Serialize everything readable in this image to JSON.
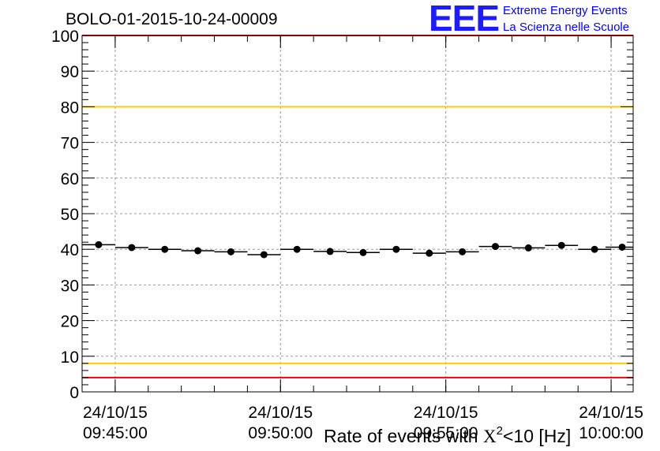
{
  "title": "BOLO-01-2015-10-24-00009",
  "logo": {
    "letters": "EEE",
    "line1": "Extreme Energy Events",
    "line2": "La Scienza nelle Scuole"
  },
  "colors": {
    "logo": "#0000ff",
    "red_line": "#ff0000",
    "yellow_line": "#ffcc00",
    "grid": "#999999"
  },
  "chart_data": {
    "type": "scatter",
    "title": "BOLO-01-2015-10-24-00009",
    "xlabel": {
      "prefix": "Rate of events with ",
      "chi": "X",
      "power": "2",
      "rest": "<10 [Hz]"
    },
    "ylabel": "",
    "ylim": [
      0,
      100
    ],
    "y_ticks": [
      "0",
      "10",
      "20",
      "30",
      "40",
      "50",
      "60",
      "70",
      "80",
      "90",
      "100"
    ],
    "x_tick_labels": [
      {
        "date": "24/10/15",
        "time": "09:45:00"
      },
      {
        "date": "24/10/15",
        "time": "09:50:00"
      },
      {
        "date": "24/10/15",
        "time": "09:55:00"
      },
      {
        "date": "24/10/15",
        "time": "10:00:00"
      }
    ],
    "xlim": [
      "09:44:00",
      "10:00:40"
    ],
    "bin_width_seconds": 60,
    "grid": true,
    "series": [
      {
        "x": [
          "09:44:30",
          "09:45:30",
          "09:46:30",
          "09:47:30",
          "09:48:30",
          "09:49:30",
          "09:50:30",
          "09:51:30",
          "09:52:30",
          "09:53:30",
          "09:54:30",
          "09:55:30",
          "09:56:30",
          "09:57:30",
          "09:58:30",
          "09:59:30",
          "10:00:20"
        ],
        "y": [
          41.3,
          40.5,
          40.0,
          39.6,
          39.3,
          38.5,
          40.0,
          39.4,
          39.1,
          40.0,
          38.9,
          39.3,
          40.8,
          40.4,
          41.1,
          40.0,
          40.6
        ]
      }
    ],
    "reference_lines": [
      {
        "y": 80,
        "color": "#ffcc00"
      },
      {
        "y": 8,
        "color": "#ffcc00"
      },
      {
        "y": 100,
        "color": "#ff0000"
      },
      {
        "y": 4,
        "color": "#ff0000"
      }
    ]
  }
}
